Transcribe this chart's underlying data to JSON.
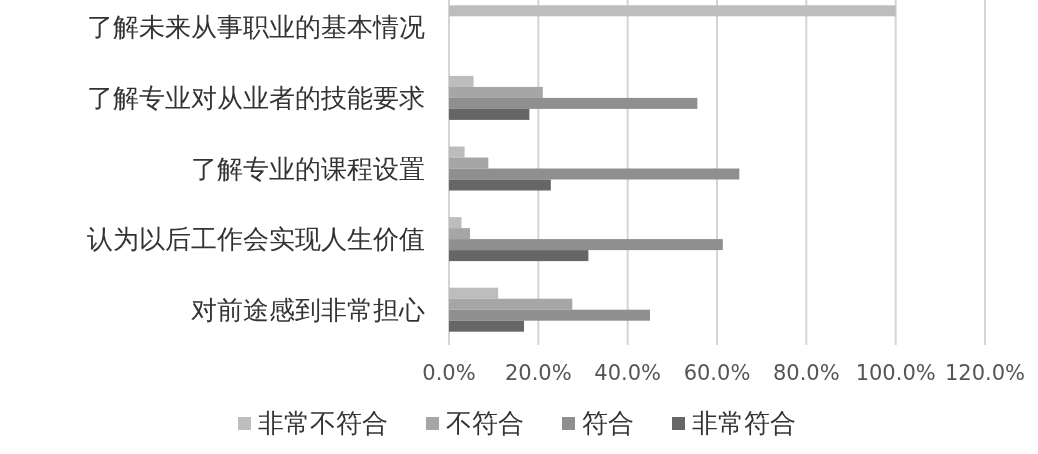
{
  "chart_data": {
    "type": "bar",
    "orientation": "horizontal",
    "categories": [
      "了解未来从事职业的基本情况",
      "了解专业对从业者的技能要求",
      "了解专业的课程设置",
      "认为以后工作会实现人生价值",
      "对前途感到非常担心"
    ],
    "series": [
      {
        "name": "非常不符合",
        "color": "#bdbdbd",
        "values": [
          100,
          5.5,
          3.5,
          2.8,
          11.0
        ]
      },
      {
        "name": "不符合",
        "color": "#a6a6a6",
        "values": [
          0,
          21.0,
          8.8,
          4.7,
          27.6
        ]
      },
      {
        "name": "符合",
        "color": "#8f8f8f",
        "values": [
          0,
          55.6,
          65.0,
          61.3,
          45.0
        ]
      },
      {
        "name": "非常符合",
        "color": "#666666",
        "values": [
          0,
          18.0,
          22.8,
          31.2,
          16.8
        ]
      }
    ],
    "xlim": [
      0,
      120
    ],
    "xticks": [
      {
        "value": 0,
        "label": "0.0%"
      },
      {
        "value": 20,
        "label": "20.0%"
      },
      {
        "value": 40,
        "label": "40.0%"
      },
      {
        "value": 60,
        "label": "60.0%"
      },
      {
        "value": 80,
        "label": "80.0%"
      },
      {
        "value": 100,
        "label": "100.0%"
      },
      {
        "value": 120,
        "label": "120.0%"
      }
    ],
    "grid": "x",
    "legend": "bottom"
  }
}
